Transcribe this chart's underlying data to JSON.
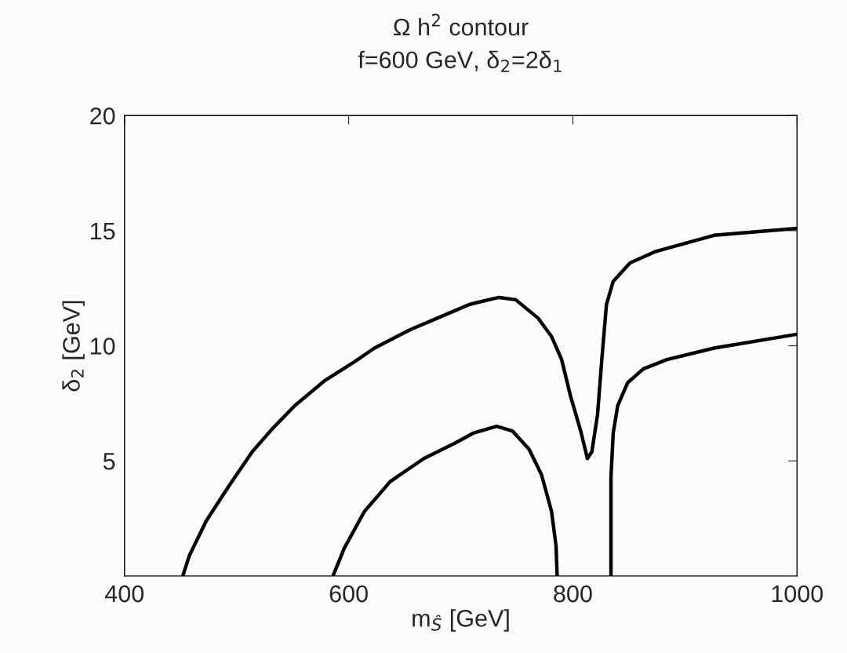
{
  "chart_data": {
    "type": "line",
    "title": "Ω h$^{2}$ contour",
    "subtitle": "f=600 GeV, δ$_{2}$=2δ$_{1}$",
    "xlabel": "m$_{Ŝ}$ [GeV]",
    "ylabel": "δ$_{2}$ [GeV]",
    "xlim": [
      400,
      1000
    ],
    "ylim": [
      0,
      20
    ],
    "xticks": [
      400,
      600,
      800,
      1000
    ],
    "yticks": [
      5,
      10,
      15,
      20
    ],
    "grid": false,
    "legend": false,
    "marker": "none",
    "line_style": "solid",
    "series": [
      {
        "color": "#000000",
        "x": [
          452,
          458,
          473,
          493,
          514,
          532,
          552,
          579,
          605,
          623,
          655,
          684,
          708,
          734,
          749,
          769,
          781,
          790,
          798,
          807,
          813,
          817,
          822,
          826,
          830,
          836,
          851,
          874,
          926,
          1000
        ],
        "values": [
          0,
          0.9,
          2.4,
          3.9,
          5.4,
          6.4,
          7.4,
          8.5,
          9.3,
          9.9,
          10.7,
          11.3,
          11.8,
          12.1,
          12.0,
          11.2,
          10.4,
          9.4,
          7.8,
          6.3,
          5.1,
          5.4,
          7.0,
          9.5,
          11.8,
          12.8,
          13.6,
          14.1,
          14.8,
          15.1
        ]
      },
      {
        "color": "#000000",
        "x": [
          586,
          596,
          614,
          637,
          667,
          696,
          711,
          732,
          746,
          761,
          772,
          781,
          785,
          786
        ],
        "values": [
          0,
          1.2,
          2.8,
          4.1,
          5.1,
          5.8,
          6.2,
          6.5,
          6.3,
          5.5,
          4.4,
          2.8,
          1.3,
          0
        ]
      },
      {
        "color": "#000000",
        "x": [
          834,
          834,
          836,
          840,
          849,
          863,
          884,
          926,
          1000
        ],
        "values": [
          0,
          4.3,
          6.2,
          7.4,
          8.4,
          9.0,
          9.4,
          9.9,
          10.5
        ]
      }
    ]
  }
}
